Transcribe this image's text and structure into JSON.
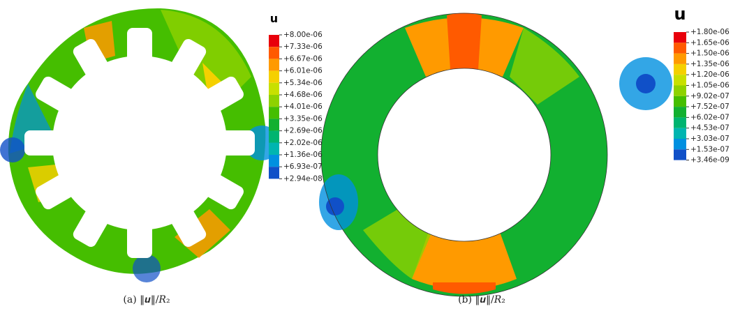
{
  "figure": {
    "panels": [
      {
        "colorbar": {
          "title": "u",
          "labels": [
            "+8.00e-06",
            "+7.33e-06",
            "+6.67e-06",
            "+6.01e-06",
            "+5.34e-06",
            "+4.68e-06",
            "+4.01e-06",
            "+3.35e-06",
            "+2.69e-06",
            "+2.02e-06",
            "+1.36e-06",
            "+6.93e-07",
            "+2.94e-08"
          ],
          "colors": [
            "#e8000b",
            "#ff5a00",
            "#ff9a00",
            "#f5d000",
            "#c8e000",
            "#8ed200",
            "#45be00",
            "#12b030",
            "#00b470",
            "#00b5b0",
            "#0090e0",
            "#1050c8"
          ]
        },
        "caption": "(a) ‖𝒖‖/𝑅₂"
      },
      {
        "colorbar": {
          "title": "u",
          "labels": [
            "+1.80e-06",
            "+1.65e-06",
            "+1.50e-06",
            "+1.35e-06",
            "+1.20e-06",
            "+1.05e-06",
            "+9.02e-07",
            "+7.52e-07",
            "+6.02e-07",
            "+4.53e-07",
            "+3.03e-07",
            "+1.53e-07",
            "+3.46e-09"
          ],
          "colors": [
            "#e8000b",
            "#ff5a00",
            "#ff9a00",
            "#f5d000",
            "#c8e000",
            "#8ed200",
            "#45be00",
            "#12b030",
            "#00b470",
            "#00b5b0",
            "#0090e0",
            "#1050c8"
          ]
        },
        "caption": "(b) ‖𝒖‖/𝑅₂"
      }
    ]
  }
}
